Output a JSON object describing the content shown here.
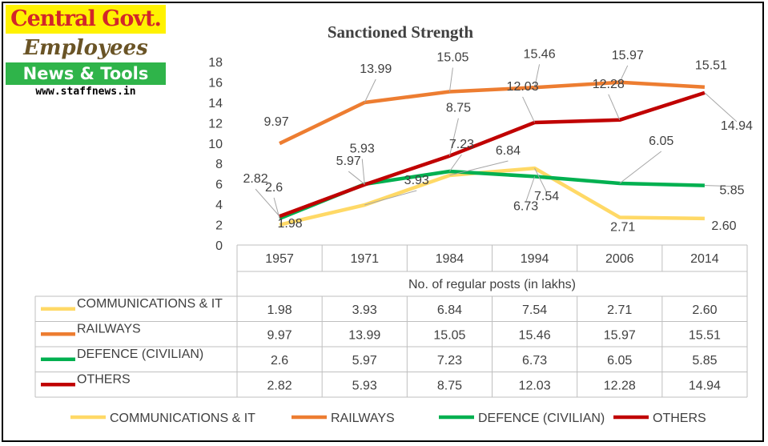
{
  "logo": {
    "line1": "Central Govt.",
    "line2": "Employees",
    "line3": "News & Tools",
    "line4": "www.staffnews.in"
  },
  "chart_data": {
    "type": "line",
    "title": "Sanctioned Strength",
    "xlabel": "No. of regular posts (in lakhs)",
    "ylabel": "",
    "ylim": [
      0,
      18
    ],
    "yticks": [
      "0",
      "2",
      "4",
      "6",
      "8",
      "10",
      "12",
      "14",
      "16",
      "18"
    ],
    "categories": [
      "1957",
      "1971",
      "1984",
      "1994",
      "2006",
      "2014"
    ],
    "series": [
      {
        "name": "COMMUNICATIONS & IT",
        "color": "#ffd966",
        "values": [
          1.98,
          3.93,
          6.84,
          7.54,
          2.71,
          2.6
        ],
        "labels": [
          "1.98",
          "3.93",
          "6.84",
          "7.54",
          "2.71",
          "2.60"
        ]
      },
      {
        "name": "RAILWAYS",
        "color": "#ed7d31",
        "values": [
          9.97,
          13.99,
          15.05,
          15.46,
          15.97,
          15.51
        ],
        "labels": [
          "9.97",
          "13.99",
          "15.05",
          "15.46",
          "15.97",
          "15.51"
        ]
      },
      {
        "name": "DEFENCE (CIVILIAN)",
        "color": "#00b050",
        "values": [
          2.6,
          5.97,
          7.23,
          6.73,
          6.05,
          5.85
        ],
        "labels": [
          "2.6",
          "5.97",
          "7.23",
          "6.73",
          "6.05",
          "5.85"
        ]
      },
      {
        "name": "OTHERS",
        "color": "#c00000",
        "values": [
          2.82,
          5.93,
          8.75,
          12.03,
          12.28,
          14.94
        ],
        "labels": [
          "2.82",
          "5.93",
          "8.75",
          "12.03",
          "12.28",
          "14.94"
        ]
      }
    ],
    "legend_position": "bottom",
    "data_table": true
  }
}
